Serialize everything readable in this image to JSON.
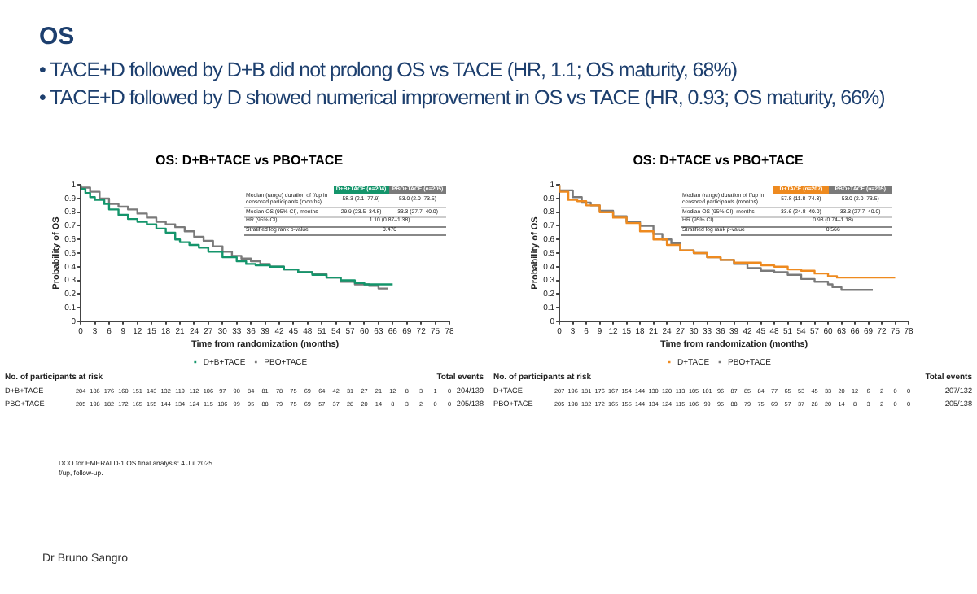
{
  "chart_data": [
    {
      "type": "other",
      "title": "OS",
      "annotations": [
        "• TACE+D followed by D+B did not prolong OS vs TACE (HR, 1.1; OS maturity, 68%)",
        "• TACE+D followed by D showed numerical improvement in OS vs TACE (HR, 0.93; OS maturity, 66%)",
        "Dr Bruno Sangro"
      ]
    },
    {
      "type": "step",
      "title": "OS: D+B+TACE vs PBO+TACE",
      "xlabel": "Time from randomization (months)",
      "ylabel": "Probability of OS",
      "xlim": [
        0,
        78
      ],
      "xticks": [
        0,
        3,
        6,
        9,
        12,
        15,
        18,
        21,
        24,
        27,
        30,
        33,
        36,
        39,
        42,
        45,
        48,
        51,
        54,
        57,
        60,
        63,
        66,
        69,
        72,
        75,
        78
      ],
      "ylim": [
        0,
        1
      ],
      "yticks": [
        0,
        0.1,
        0.2,
        0.3,
        0.4,
        0.5,
        0.6,
        0.7,
        0.8,
        0.9,
        1.0
      ],
      "grid": false,
      "legend": "bottom",
      "marker": "none",
      "line_style": "solid",
      "series": [
        {
          "name": "D+B+TACE",
          "color": "#14956b",
          "x": [
            0,
            1,
            2,
            3,
            5,
            6,
            8,
            10,
            12,
            14,
            16,
            18,
            20,
            21,
            23,
            25,
            27,
            30,
            33,
            35,
            37,
            40,
            43,
            46,
            49,
            52,
            55,
            58,
            60,
            62,
            66
          ],
          "values": [
            1.0,
            0.97,
            0.94,
            0.91,
            0.89,
            0.86,
            0.82,
            0.78,
            0.75,
            0.73,
            0.71,
            0.68,
            0.65,
            0.6,
            0.58,
            0.56,
            0.54,
            0.51,
            0.47,
            0.44,
            0.42,
            0.41,
            0.4,
            0.38,
            0.36,
            0.34,
            0.32,
            0.3,
            0.28,
            0.27,
            0.27
          ]
        },
        {
          "name": "PBO+TACE",
          "color": "#7a7a7a",
          "x": [
            0,
            2,
            4,
            6,
            8,
            10,
            12,
            14,
            16,
            18,
            20,
            22,
            24,
            26,
            28,
            30,
            32,
            34,
            36,
            38,
            40,
            43,
            46,
            49,
            52,
            55,
            58,
            61,
            63,
            65
          ],
          "values": [
            1.0,
            0.98,
            0.95,
            0.9,
            0.86,
            0.84,
            0.82,
            0.79,
            0.76,
            0.73,
            0.71,
            0.69,
            0.66,
            0.62,
            0.59,
            0.55,
            0.51,
            0.48,
            0.46,
            0.44,
            0.42,
            0.4,
            0.38,
            0.36,
            0.35,
            0.32,
            0.29,
            0.27,
            0.26,
            0.24
          ]
        }
      ],
      "annotations": [
        "D+B+TACE (n=204)",
        "PBO+TACE (n=205)",
        "Median (range) duration of f/up in censored participants (months)",
        "58.3 (2.1–77.9)",
        "53.0 (2.0–73.5)",
        "Median OS (95% CI), months",
        "29.9 (23.5–34.8)",
        "33.3 (27.7–40.0)",
        "HR (95% CI)",
        "1.10 (0.87–1.38)",
        "Stratified log rank p-value",
        "0.470",
        "No. of participants at risk",
        "Total events",
        "D+B+TACE",
        "204 186 176 160 151 143 132 119 112 106 97 90 84 81 78 75 69 64 42 31 27 21 12 8 3 1 0",
        "204/139",
        "PBO+TACE",
        "205 198 182 172 165 155 144 134 124 115 106 99 95 88 79 75 69 57 37 28 20 14 8 3 2 0 0",
        "205/138",
        "DCO for EMERALD-1 OS final analysis: 4 Jul 2025.",
        "f/up, follow-up."
      ]
    },
    {
      "type": "step",
      "title": "OS: D+TACE vs PBO+TACE",
      "xlabel": "Time from randomization (months)",
      "ylabel": "Probability of OS",
      "xlim": [
        0,
        78
      ],
      "xticks": [
        0,
        3,
        6,
        9,
        12,
        15,
        18,
        21,
        24,
        27,
        30,
        33,
        36,
        39,
        42,
        45,
        48,
        51,
        54,
        57,
        60,
        63,
        66,
        69,
        72,
        75,
        78
      ],
      "ylim": [
        0,
        1
      ],
      "yticks": [
        0,
        0.1,
        0.2,
        0.3,
        0.4,
        0.5,
        0.6,
        0.7,
        0.8,
        0.9,
        1.0
      ],
      "grid": false,
      "legend": "bottom",
      "marker": "none",
      "line_style": "solid",
      "series": [
        {
          "name": "D+TACE",
          "color": "#ee8a1f",
          "x": [
            0,
            2,
            4,
            6,
            9,
            12,
            15,
            18,
            21,
            24,
            27,
            30,
            33,
            36,
            39,
            42,
            45,
            48,
            51,
            54,
            57,
            60,
            62,
            63,
            66,
            75
          ],
          "values": [
            1.0,
            0.95,
            0.89,
            0.88,
            0.85,
            0.8,
            0.76,
            0.72,
            0.66,
            0.6,
            0.56,
            0.52,
            0.5,
            0.47,
            0.45,
            0.43,
            0.43,
            0.41,
            0.4,
            0.38,
            0.37,
            0.35,
            0.33,
            0.32,
            0.32,
            0.32
          ]
        },
        {
          "name": "PBO+TACE",
          "color": "#7a7a7a",
          "x": [
            0,
            3,
            5,
            7,
            9,
            12,
            15,
            18,
            21,
            23,
            25,
            27,
            30,
            33,
            36,
            39,
            42,
            45,
            48,
            51,
            54,
            57,
            60,
            61,
            63,
            64,
            70
          ],
          "values": [
            1.0,
            0.96,
            0.91,
            0.87,
            0.85,
            0.81,
            0.77,
            0.73,
            0.7,
            0.64,
            0.6,
            0.57,
            0.52,
            0.5,
            0.47,
            0.45,
            0.42,
            0.39,
            0.37,
            0.36,
            0.34,
            0.31,
            0.29,
            0.27,
            0.25,
            0.23,
            0.23
          ]
        }
      ],
      "annotations": [
        "D+TACE (n=207)",
        "PBO+TACE (n=205)",
        "Median (range) duration of f/up in censored participants (months)",
        "57.8 (11.8–74.3)",
        "53.0 (2.0–73.5)",
        "Median OS (95% CI), months",
        "33.6 (24.8–40.0)",
        "33.3 (27.7–40.0)",
        "HR (95% CI)",
        "0.93 (0.74–1.18)",
        "Stratified log rank p-value",
        "0.566",
        "No. of participants at risk",
        "Total events",
        "D+TACE",
        "207 196 181 176 167 154 144 130 120 113 105 101 96 87 85 84 77 65 53 45 33 20 12 6 2 0 0",
        "207/132",
        "PBO+TACE",
        "205 198 182 172 165 155 144 134 124 115 106 99 95 88 79 75 69 57 37 28 20 14 8 3 2 0 0",
        "205/138"
      ]
    }
  ]
}
